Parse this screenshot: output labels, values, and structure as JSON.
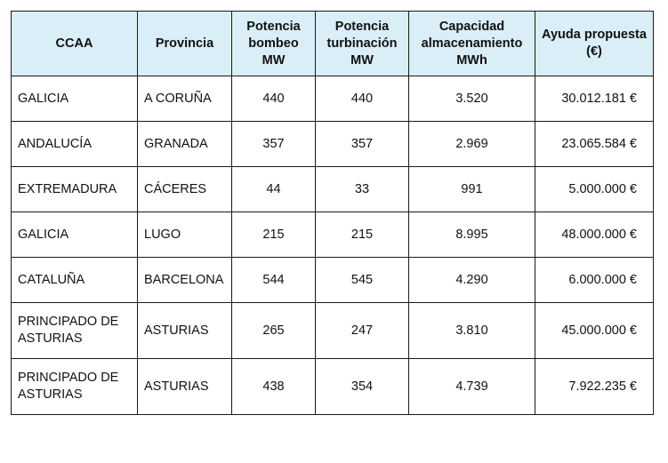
{
  "table": {
    "headers": [
      "CCAA",
      "Provincia",
      "Potencia bombeo MW",
      "Potencia turbinación MW",
      "Capacidad almacenamiento MWh",
      "Ayuda propuesta (€)"
    ],
    "rows": [
      [
        "GALICIA",
        "A CORUÑA",
        "440",
        "440",
        "3.520",
        "30.012.181 €"
      ],
      [
        "ANDALUCÍA",
        "GRANADA",
        "357",
        "357",
        "2.969",
        "23.065.584 €"
      ],
      [
        "EXTREMADURA",
        "CÁCERES",
        "44",
        "33",
        "991",
        "5.000.000 €"
      ],
      [
        "GALICIA",
        "LUGO",
        "215",
        "215",
        "8.995",
        "48.000.000 €"
      ],
      [
        "CATALUÑA",
        "BARCELONA",
        "544",
        "545",
        "4.290",
        "6.000.000 €"
      ],
      [
        "PRINCIPADO DE ASTURIAS",
        "ASTURIAS",
        "265",
        "247",
        "3.810",
        "45.000.000 €"
      ],
      [
        "PRINCIPADO DE ASTURIAS",
        "ASTURIAS",
        "438",
        "354",
        "4.739",
        "7.922.235 €"
      ]
    ]
  },
  "colors": {
    "header_background": "#d9eef6",
    "border": "#1a1a1a",
    "text": "#111111"
  }
}
